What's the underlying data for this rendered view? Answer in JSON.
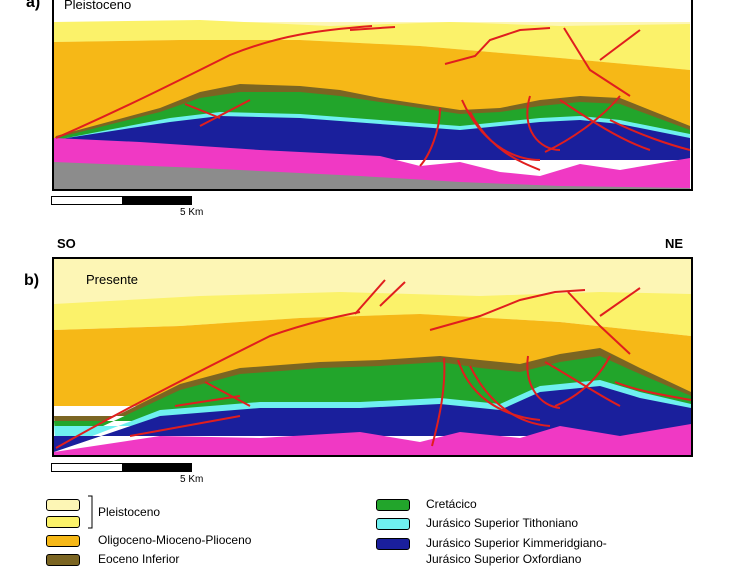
{
  "panels": {
    "a": {
      "letter": "a)",
      "title": "Pleistoceno"
    },
    "b": {
      "letter": "b)",
      "title": "Presente"
    }
  },
  "directions": {
    "left": "SO",
    "right": "NE"
  },
  "scalebar": {
    "label": "5 Km"
  },
  "legend": {
    "pleistoceno": "Pleistoceno",
    "oligoceno": "Oligoceno-Mioceno-Plioceno",
    "eoceno": "Eoceno Inferior",
    "cretacico": "Cretácico",
    "tithoniano": "Jurásico Superior Tithoniano",
    "kimmeridgiano": "Jurásico Superior Kimmeridgiano-",
    "oxfordiano": "Jurásico Superior Oxfordiano"
  },
  "colors": {
    "pleistoceno_upper": "#FDF6B5",
    "pleistoceno_lower": "#FBF26A",
    "oligoceno": "#F6B817",
    "eoceno": "#7B6522",
    "cretacico": "#22A52B",
    "tithoniano": "#6FF0F0",
    "kimmeridgiano": "#1A1F9C",
    "pink": "#F039C4",
    "basement": "#8C8C8C",
    "fault": "#E01E1E"
  }
}
